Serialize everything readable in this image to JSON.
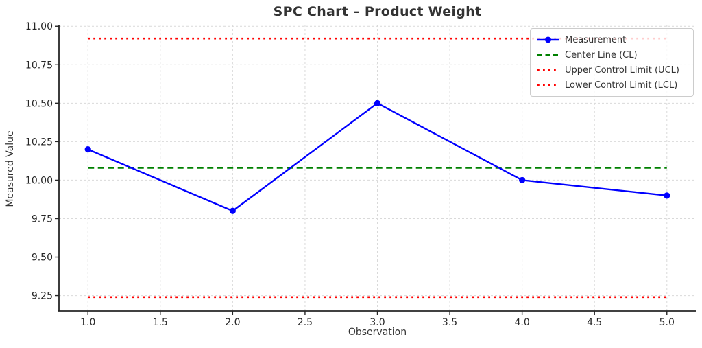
{
  "chart_data": {
    "type": "line",
    "title": "SPC Chart – Product Weight",
    "xlabel": "Observation",
    "ylabel": "Measured Value",
    "x": [
      1,
      2,
      3,
      4,
      5
    ],
    "series": [
      {
        "name": "Measurement",
        "values": [
          10.2,
          9.8,
          10.5,
          10.0,
          9.9
        ],
        "color": "#0000ff",
        "style": "solid",
        "marker": "circle"
      },
      {
        "name": "Center Line (CL)",
        "value": 10.08,
        "color": "#008000",
        "style": "dashed"
      },
      {
        "name": "Upper Control Limit (UCL)",
        "value": 10.92,
        "color": "#ff0000",
        "style": "dotted"
      },
      {
        "name": "Lower Control Limit (LCL)",
        "value": 9.24,
        "color": "#ff0000",
        "style": "dotted"
      }
    ],
    "x_ticks": [
      "1.0",
      "1.5",
      "2.0",
      "2.5",
      "3.0",
      "3.5",
      "4.0",
      "4.5",
      "5.0"
    ],
    "y_ticks": [
      "11.00",
      "10.75",
      "10.50",
      "10.25",
      "10.00",
      "9.75",
      "9.50",
      "9.25"
    ],
    "xlim": [
      0.8,
      5.2
    ],
    "ylim": [
      9.15,
      11.01
    ],
    "grid": true,
    "legend_position": "upper right",
    "colors": {
      "grid": "#d9d9d9",
      "spine": "#262626",
      "tick_label": "#262626",
      "text": "#333333"
    }
  }
}
